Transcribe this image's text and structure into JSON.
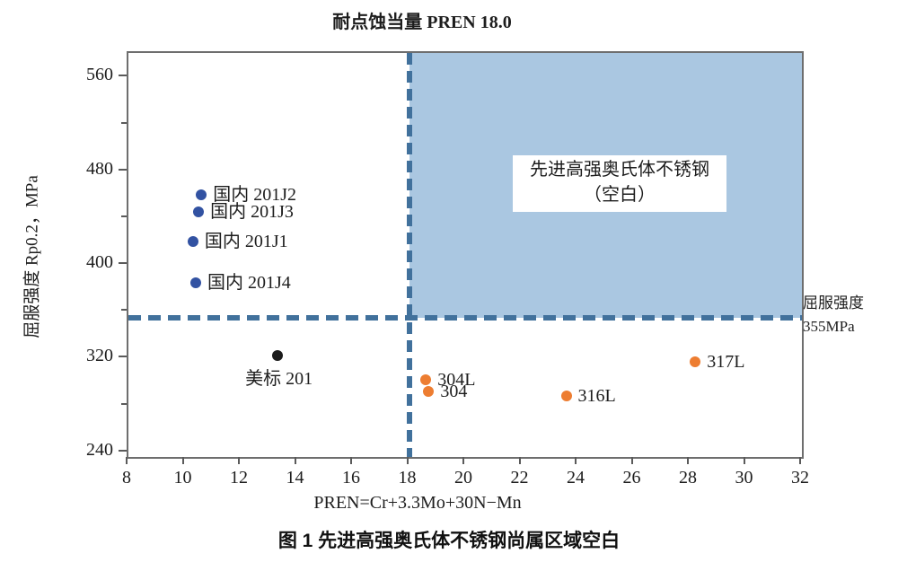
{
  "colors": {
    "dash_line": "#41719c",
    "region_fill": "#aac7e1",
    "axis": "#5a5a5a",
    "series_domestic": "#3252a2",
    "series_astm": "#1b1b1b",
    "series_conventional": "#ed7d31"
  },
  "chart_data": {
    "type": "scatter",
    "title": "耐点蚀当量 PREN 18.0",
    "xlabel": "PREN=Cr+3.3Mo+30N−Mn",
    "ylabel": "屈服强度 Rp0.2，MPa",
    "caption": "图 1 先进高强奥氏体不锈钢尚属区域空白",
    "xlim": [
      8,
      32
    ],
    "ylim": [
      236,
      581
    ],
    "xticks": [
      8,
      10,
      12,
      14,
      16,
      18,
      20,
      22,
      24,
      26,
      28,
      30,
      32
    ],
    "yticks": [
      240,
      320,
      400,
      480,
      560
    ],
    "yticks_minor": [
      280,
      360,
      440,
      520
    ],
    "grid": false,
    "legend": "none",
    "reference_lines": {
      "vline": {
        "x": 18
      },
      "hline": {
        "y": 355,
        "label_line1": "屈服强度",
        "label_line2": "355MPa"
      }
    },
    "shaded_region": {
      "x_range": [
        18,
        32
      ],
      "y_range": [
        355,
        581
      ],
      "label_line1": "先进高强奥氏体不锈钢",
      "label_line2": "（空白）"
    },
    "series": [
      {
        "id": "domestic-201-steels",
        "color": "#3252a2",
        "points": [
          {
            "x": 10.6,
            "y": 460,
            "label": "国内 201J2",
            "label_pos": "right"
          },
          {
            "x": 10.5,
            "y": 445,
            "label": "国内 201J3",
            "label_pos": "right"
          },
          {
            "x": 10.3,
            "y": 420,
            "label": "国内 201J1",
            "label_pos": "right"
          },
          {
            "x": 10.4,
            "y": 385,
            "label": "国内 201J4",
            "label_pos": "right"
          }
        ]
      },
      {
        "id": "astm-201",
        "color": "#1b1b1b",
        "points": [
          {
            "x": 13.3,
            "y": 323,
            "label": "美标 201",
            "label_pos": "below"
          }
        ]
      },
      {
        "id": "conventional-300-series",
        "color": "#ed7d31",
        "points": [
          {
            "x": 18.6,
            "y": 302,
            "label": "304L",
            "label_pos": "right"
          },
          {
            "x": 18.7,
            "y": 292,
            "label": "304",
            "label_pos": "right"
          },
          {
            "x": 23.6,
            "y": 288,
            "label": "316L",
            "label_pos": "right"
          },
          {
            "x": 28.2,
            "y": 317,
            "label": "317L",
            "label_pos": "right"
          }
        ]
      }
    ]
  }
}
